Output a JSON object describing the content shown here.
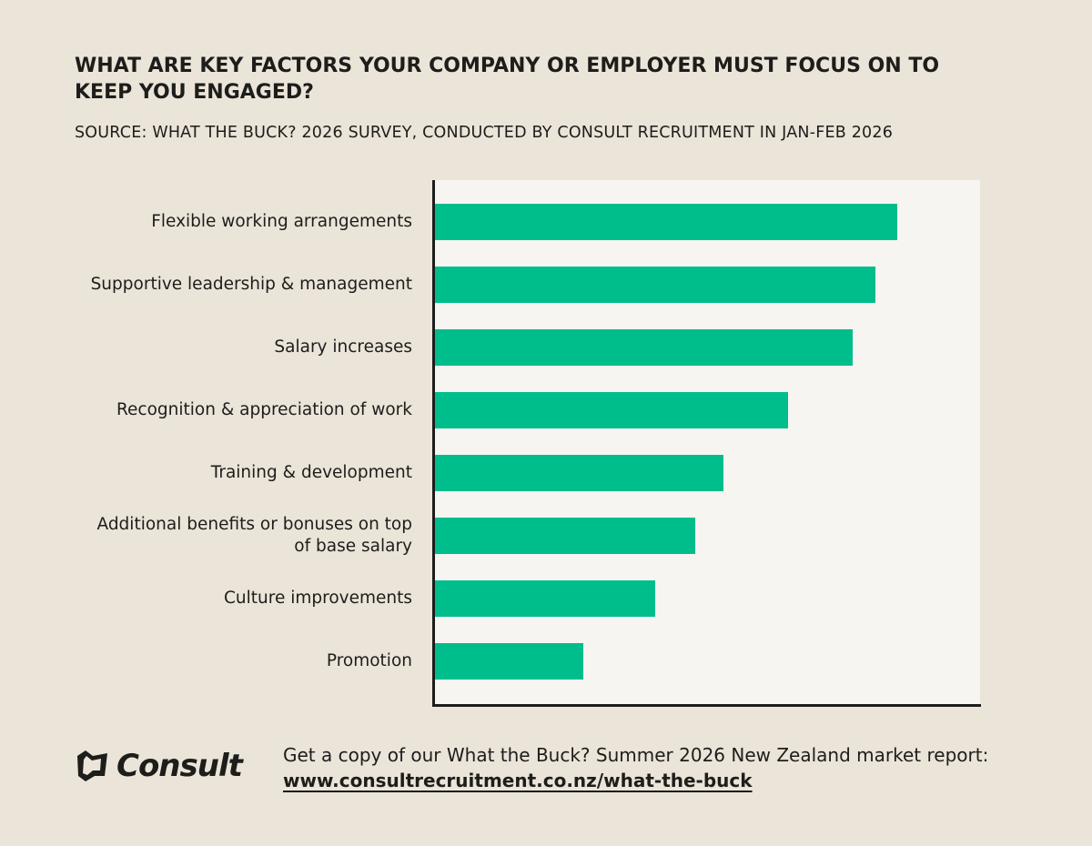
{
  "chart_data": {
    "type": "barh",
    "title": "WHAT ARE KEY FACTORS YOUR COMPANY OR EMPLOYER MUST FOCUS ON TO KEEP YOU ENGAGED?",
    "subtitle": "SOURCE: WHAT THE BUCK? 2026 SURVEY, CONDUCTED BY CONSULT RECRUITMENT IN JAN-FEB 2026",
    "categories": [
      "Flexible working arrangements",
      "Supportive leadership & management",
      "Salary increases",
      "Recognition & appreciation of work",
      "Training & development",
      "Additional benefits or bonuses on top of base salary",
      "Culture improvements",
      "Promotion"
    ],
    "values": [
      84.8,
      80.8,
      76.7,
      64.8,
      53,
      47.8,
      40.5,
      27.3
    ],
    "color": "#00bd8c",
    "xlim": [
      0,
      100
    ]
  },
  "footer": {
    "logo": "Consult",
    "text": "Get a copy of our What the Buck? Summer 2026  New Zealand market report:",
    "link": "www.consultrecruitment.co.nz/what-the-buck"
  }
}
